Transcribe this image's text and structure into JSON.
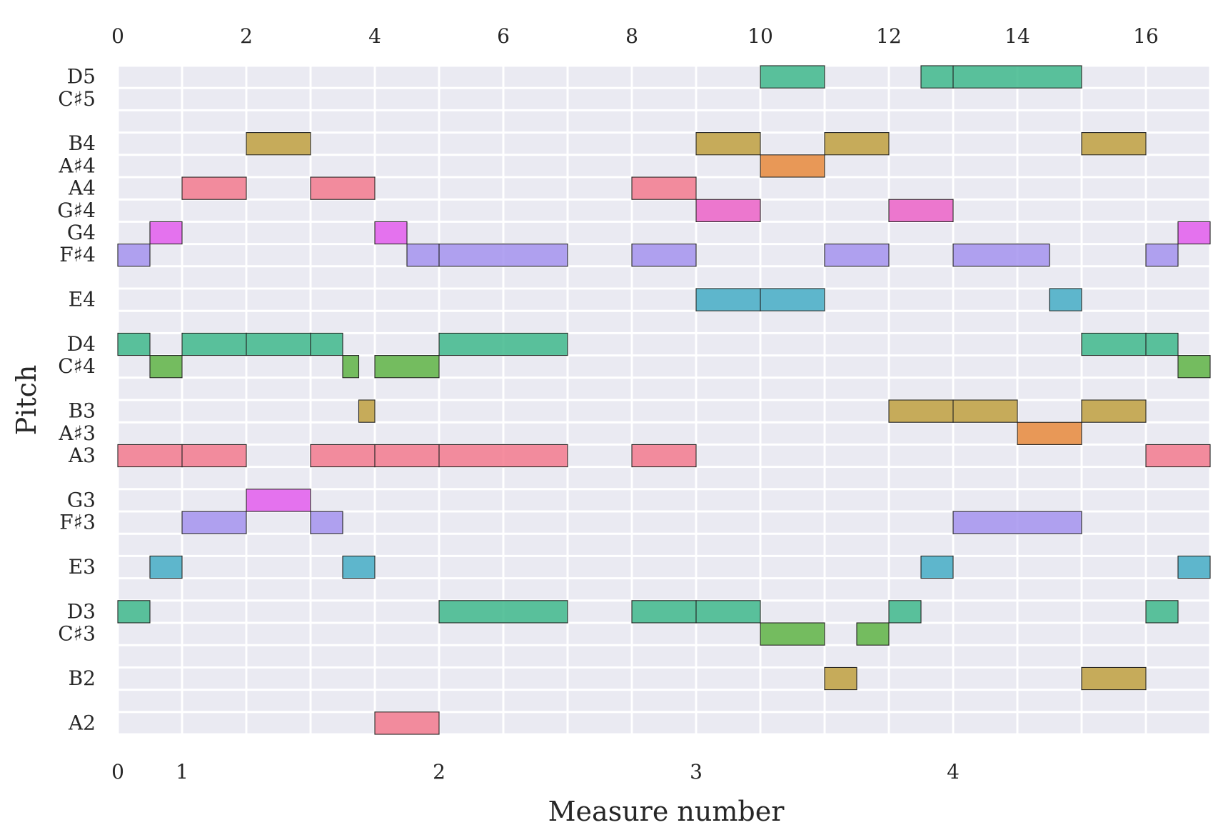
{
  "chart_data": {
    "type": "piano-roll",
    "xlabel": "Measure number",
    "ylabel": "Pitch",
    "xlim": [
      0,
      17
    ],
    "top_axis_ticks": [
      "0",
      "2",
      "4",
      "6",
      "8",
      "10",
      "12",
      "14",
      "16"
    ],
    "bottom_axis_ticks": [
      {
        "label": "0",
        "beat": 0
      },
      {
        "label": "1",
        "beat": 1
      },
      {
        "label": "2",
        "beat": 5
      },
      {
        "label": "3",
        "beat": 9
      },
      {
        "label": "4",
        "beat": 13
      }
    ],
    "pitch_min": 45,
    "pitch_max": 74,
    "pitch_labels": [
      {
        "label": "D5",
        "midi": 74
      },
      {
        "label": "C♯5",
        "midi": 73
      },
      {
        "label": "B4",
        "midi": 71
      },
      {
        "label": "A♯4",
        "midi": 70
      },
      {
        "label": "A4",
        "midi": 69
      },
      {
        "label": "G♯4",
        "midi": 68
      },
      {
        "label": "G4",
        "midi": 67
      },
      {
        "label": "F♯4",
        "midi": 66
      },
      {
        "label": "E4",
        "midi": 64
      },
      {
        "label": "D4",
        "midi": 62
      },
      {
        "label": "C♯4",
        "midi": 61
      },
      {
        "label": "B3",
        "midi": 59
      },
      {
        "label": "A♯3",
        "midi": 58
      },
      {
        "label": "A3",
        "midi": 57
      },
      {
        "label": "G3",
        "midi": 55
      },
      {
        "label": "F♯3",
        "midi": 54
      },
      {
        "label": "E3",
        "midi": 52
      },
      {
        "label": "D3",
        "midi": 50
      },
      {
        "label": "C♯3",
        "midi": 49
      },
      {
        "label": "B2",
        "midi": 47
      },
      {
        "label": "A2",
        "midi": 45
      }
    ],
    "pitch_class_colors": {
      "A": "#f37a8e",
      "A#": "#e88a3c",
      "B": "#c0a040",
      "C#": "#5fb445",
      "D": "#3fb98c",
      "E": "#45adc6",
      "F#": "#a593ee",
      "G": "#e35ded",
      "G#": "#ec63c8"
    },
    "notes": [
      {
        "pitch": "D5",
        "midi": 74,
        "start": 10.0,
        "end": 11.0
      },
      {
        "pitch": "D5",
        "midi": 74,
        "start": 12.5,
        "end": 13.0
      },
      {
        "pitch": "D5",
        "midi": 74,
        "start": 13.0,
        "end": 15.0
      },
      {
        "pitch": "B4",
        "midi": 71,
        "start": 2.0,
        "end": 3.0
      },
      {
        "pitch": "B4",
        "midi": 71,
        "start": 9.0,
        "end": 10.0
      },
      {
        "pitch": "B4",
        "midi": 71,
        "start": 11.0,
        "end": 12.0
      },
      {
        "pitch": "B4",
        "midi": 71,
        "start": 15.0,
        "end": 16.0
      },
      {
        "pitch": "A♯4",
        "midi": 70,
        "start": 10.0,
        "end": 11.0
      },
      {
        "pitch": "A4",
        "midi": 69,
        "start": 1.0,
        "end": 2.0
      },
      {
        "pitch": "A4",
        "midi": 69,
        "start": 3.0,
        "end": 4.0
      },
      {
        "pitch": "A4",
        "midi": 69,
        "start": 8.0,
        "end": 9.0
      },
      {
        "pitch": "G♯4",
        "midi": 68,
        "start": 9.0,
        "end": 10.0
      },
      {
        "pitch": "G♯4",
        "midi": 68,
        "start": 12.0,
        "end": 13.0
      },
      {
        "pitch": "G4",
        "midi": 67,
        "start": 0.5,
        "end": 1.0
      },
      {
        "pitch": "G4",
        "midi": 67,
        "start": 4.0,
        "end": 4.5
      },
      {
        "pitch": "G4",
        "midi": 67,
        "start": 16.5,
        "end": 17.0
      },
      {
        "pitch": "F♯4",
        "midi": 66,
        "start": 0.0,
        "end": 0.5
      },
      {
        "pitch": "F♯4",
        "midi": 66,
        "start": 4.5,
        "end": 5.0
      },
      {
        "pitch": "F♯4",
        "midi": 66,
        "start": 5.0,
        "end": 7.0
      },
      {
        "pitch": "F♯4",
        "midi": 66,
        "start": 8.0,
        "end": 9.0
      },
      {
        "pitch": "F♯4",
        "midi": 66,
        "start": 11.0,
        "end": 12.0
      },
      {
        "pitch": "F♯4",
        "midi": 66,
        "start": 13.0,
        "end": 14.5
      },
      {
        "pitch": "F♯4",
        "midi": 66,
        "start": 16.0,
        "end": 16.5
      },
      {
        "pitch": "E4",
        "midi": 64,
        "start": 9.0,
        "end": 10.0
      },
      {
        "pitch": "E4",
        "midi": 64,
        "start": 10.0,
        "end": 11.0
      },
      {
        "pitch": "E4",
        "midi": 64,
        "start": 14.5,
        "end": 15.0
      },
      {
        "pitch": "D4",
        "midi": 62,
        "start": 0.0,
        "end": 0.5
      },
      {
        "pitch": "D4",
        "midi": 62,
        "start": 1.0,
        "end": 2.0
      },
      {
        "pitch": "D4",
        "midi": 62,
        "start": 2.0,
        "end": 3.0
      },
      {
        "pitch": "D4",
        "midi": 62,
        "start": 3.0,
        "end": 3.5
      },
      {
        "pitch": "D4",
        "midi": 62,
        "start": 5.0,
        "end": 7.0
      },
      {
        "pitch": "D4",
        "midi": 62,
        "start": 15.0,
        "end": 16.0
      },
      {
        "pitch": "D4",
        "midi": 62,
        "start": 16.0,
        "end": 16.5
      },
      {
        "pitch": "C♯4",
        "midi": 61,
        "start": 0.5,
        "end": 1.0
      },
      {
        "pitch": "C♯4",
        "midi": 61,
        "start": 3.5,
        "end": 3.75
      },
      {
        "pitch": "C♯4",
        "midi": 61,
        "start": 4.0,
        "end": 5.0
      },
      {
        "pitch": "C♯4",
        "midi": 61,
        "start": 16.5,
        "end": 17.0
      },
      {
        "pitch": "B3",
        "midi": 59,
        "start": 3.75,
        "end": 4.0
      },
      {
        "pitch": "B3",
        "midi": 59,
        "start": 12.0,
        "end": 13.0
      },
      {
        "pitch": "B3",
        "midi": 59,
        "start": 13.0,
        "end": 14.0
      },
      {
        "pitch": "B3",
        "midi": 59,
        "start": 15.0,
        "end": 16.0
      },
      {
        "pitch": "A♯3",
        "midi": 58,
        "start": 14.0,
        "end": 15.0
      },
      {
        "pitch": "A3",
        "midi": 57,
        "start": 0.0,
        "end": 1.0
      },
      {
        "pitch": "A3",
        "midi": 57,
        "start": 1.0,
        "end": 2.0
      },
      {
        "pitch": "A3",
        "midi": 57,
        "start": 3.0,
        "end": 4.0
      },
      {
        "pitch": "A3",
        "midi": 57,
        "start": 4.0,
        "end": 5.0
      },
      {
        "pitch": "A3",
        "midi": 57,
        "start": 5.0,
        "end": 7.0
      },
      {
        "pitch": "A3",
        "midi": 57,
        "start": 8.0,
        "end": 9.0
      },
      {
        "pitch": "A3",
        "midi": 57,
        "start": 16.0,
        "end": 17.0
      },
      {
        "pitch": "G3",
        "midi": 55,
        "start": 2.0,
        "end": 3.0
      },
      {
        "pitch": "F♯3",
        "midi": 54,
        "start": 1.0,
        "end": 2.0
      },
      {
        "pitch": "F♯3",
        "midi": 54,
        "start": 3.0,
        "end": 3.5
      },
      {
        "pitch": "F♯3",
        "midi": 54,
        "start": 13.0,
        "end": 15.0
      },
      {
        "pitch": "E3",
        "midi": 52,
        "start": 0.5,
        "end": 1.0
      },
      {
        "pitch": "E3",
        "midi": 52,
        "start": 3.5,
        "end": 4.0
      },
      {
        "pitch": "E3",
        "midi": 52,
        "start": 12.5,
        "end": 13.0
      },
      {
        "pitch": "E3",
        "midi": 52,
        "start": 16.5,
        "end": 17.0
      },
      {
        "pitch": "D3",
        "midi": 50,
        "start": 0.0,
        "end": 0.5
      },
      {
        "pitch": "D3",
        "midi": 50,
        "start": 5.0,
        "end": 7.0
      },
      {
        "pitch": "D3",
        "midi": 50,
        "start": 8.0,
        "end": 9.0
      },
      {
        "pitch": "D3",
        "midi": 50,
        "start": 9.0,
        "end": 10.0
      },
      {
        "pitch": "D3",
        "midi": 50,
        "start": 12.0,
        "end": 12.5
      },
      {
        "pitch": "D3",
        "midi": 50,
        "start": 16.0,
        "end": 16.5
      },
      {
        "pitch": "C♯3",
        "midi": 49,
        "start": 10.0,
        "end": 11.0
      },
      {
        "pitch": "C♯3",
        "midi": 49,
        "start": 11.5,
        "end": 12.0
      },
      {
        "pitch": "B2",
        "midi": 47,
        "start": 11.0,
        "end": 11.5
      },
      {
        "pitch": "B2",
        "midi": 47,
        "start": 15.0,
        "end": 16.0
      },
      {
        "pitch": "A2",
        "midi": 45,
        "start": 4.0,
        "end": 5.0
      }
    ]
  }
}
